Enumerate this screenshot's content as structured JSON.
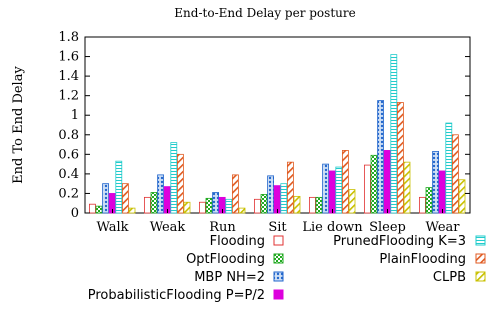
{
  "chart_data": {
    "type": "bar",
    "title": "End-to-End Delay per posture",
    "xlabel": "",
    "ylabel": "End To End Delay",
    "ylim": [
      0,
      1.8
    ],
    "yticks": [
      "0",
      "0.2",
      "0.4",
      "0.6",
      "0.8",
      "1",
      "1.2",
      "1.4",
      "1.6",
      "1.8"
    ],
    "categories": [
      "Walk",
      "Weak",
      "Run",
      "Sit",
      "Lie down",
      "Sleep",
      "Wear"
    ],
    "series": [
      {
        "name": "Flooding",
        "color": "#e03030",
        "pattern": "none",
        "values": [
          0.09,
          0.16,
          0.11,
          0.14,
          0.16,
          0.49,
          0.16
        ]
      },
      {
        "name": "OptFlooding",
        "color": "#22aa22",
        "pattern": "checker",
        "values": [
          0.07,
          0.21,
          0.15,
          0.19,
          0.16,
          0.59,
          0.26
        ]
      },
      {
        "name": "MBP NH=2",
        "color": "#2266cc",
        "pattern": "dots",
        "values": [
          0.3,
          0.39,
          0.21,
          0.38,
          0.5,
          1.15,
          0.63
        ]
      },
      {
        "name": "ProbabilisticFlooding P=P/2",
        "color": "#dd00dd",
        "pattern": "solid",
        "values": [
          0.2,
          0.27,
          0.16,
          0.28,
          0.43,
          0.64,
          0.43
        ]
      },
      {
        "name": "PrunedFlooding K=3",
        "color": "#22cccc",
        "pattern": "hlines",
        "values": [
          0.53,
          0.72,
          0.14,
          0.3,
          0.47,
          1.62,
          0.92
        ]
      },
      {
        "name": "PlainFlooding",
        "color": "#e05a20",
        "pattern": "diag",
        "values": [
          0.3,
          0.6,
          0.39,
          0.52,
          0.64,
          1.13,
          0.8
        ]
      },
      {
        "name": "CLPB",
        "color": "#c8c000",
        "pattern": "diag",
        "values": [
          0.05,
          0.11,
          0.05,
          0.17,
          0.24,
          0.52,
          0.34
        ]
      }
    ],
    "grid": false,
    "legend_position": "bottom"
  }
}
